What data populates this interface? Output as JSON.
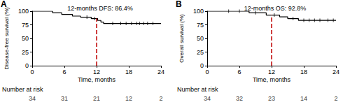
{
  "chart_data": [
    {
      "type": "line",
      "panel": "A",
      "title": "12-months DFS: 86.4%",
      "ylabel": "Disease-free survival (%)",
      "xlabel": "Time, months",
      "x": [
        0,
        3.8,
        5.5,
        7.5,
        9,
        11,
        12.2,
        12.8,
        13.3,
        24
      ],
      "values": [
        100,
        97,
        94,
        91,
        89,
        86.4,
        83,
        80,
        77.5,
        77.5
      ],
      "color": "#000000",
      "line_style": "step",
      "censored": {
        "x": [
          10.2,
          11.6,
          15,
          16.5,
          17.5,
          18.5,
          19.5,
          20,
          20.8,
          21.5,
          22.5
        ],
        "values": [
          89,
          86.4,
          77.5,
          77.5,
          77.5,
          77.5,
          77.5,
          77.5,
          77.5,
          77.5,
          77.5
        ]
      },
      "reference": {
        "x": 12,
        "y": 86.4,
        "color": "#c00000"
      },
      "xlim": [
        0,
        24
      ],
      "xticks": [
        0,
        6,
        12,
        18,
        24
      ],
      "ylim": [
        0,
        100
      ],
      "yticks": [
        0,
        25,
        50,
        75,
        100
      ],
      "grid": false,
      "number_at_risk": {
        "label": "Number at risk",
        "x": [
          0,
          6,
          12,
          18,
          24
        ],
        "values": [
          34,
          31,
          21,
          12,
          2
        ]
      }
    },
    {
      "type": "line",
      "panel": "B",
      "title": "12-months OS: 92.8%",
      "ylabel": "Overall survival (%)",
      "xlabel": "Time, months",
      "x": [
        0,
        7.8,
        11,
        13.5,
        15,
        17,
        24
      ],
      "values": [
        100,
        97,
        92.8,
        89.7,
        86.5,
        83.3,
        83.3
      ],
      "color": "#000000",
      "line_style": "step",
      "censored": {
        "x": [
          4,
          6,
          9,
          12.5,
          16,
          18,
          19,
          20,
          21,
          22.5,
          23.5
        ],
        "values": [
          100,
          100,
          97,
          92.8,
          86.5,
          83.3,
          83.3,
          83.3,
          83.3,
          83.3,
          83.3
        ]
      },
      "reference": {
        "x": 12,
        "y": 92.8,
        "color": "#c00000"
      },
      "xlim": [
        0,
        24
      ],
      "xticks": [
        0,
        6,
        12,
        18,
        24
      ],
      "ylim": [
        0,
        100
      ],
      "yticks": [
        0,
        25,
        50,
        75,
        100
      ],
      "grid": false,
      "number_at_risk": {
        "label": "Number at risk",
        "x": [
          0,
          6,
          12,
          18,
          24
        ],
        "values": [
          34,
          32,
          23,
          14,
          2
        ]
      }
    }
  ]
}
